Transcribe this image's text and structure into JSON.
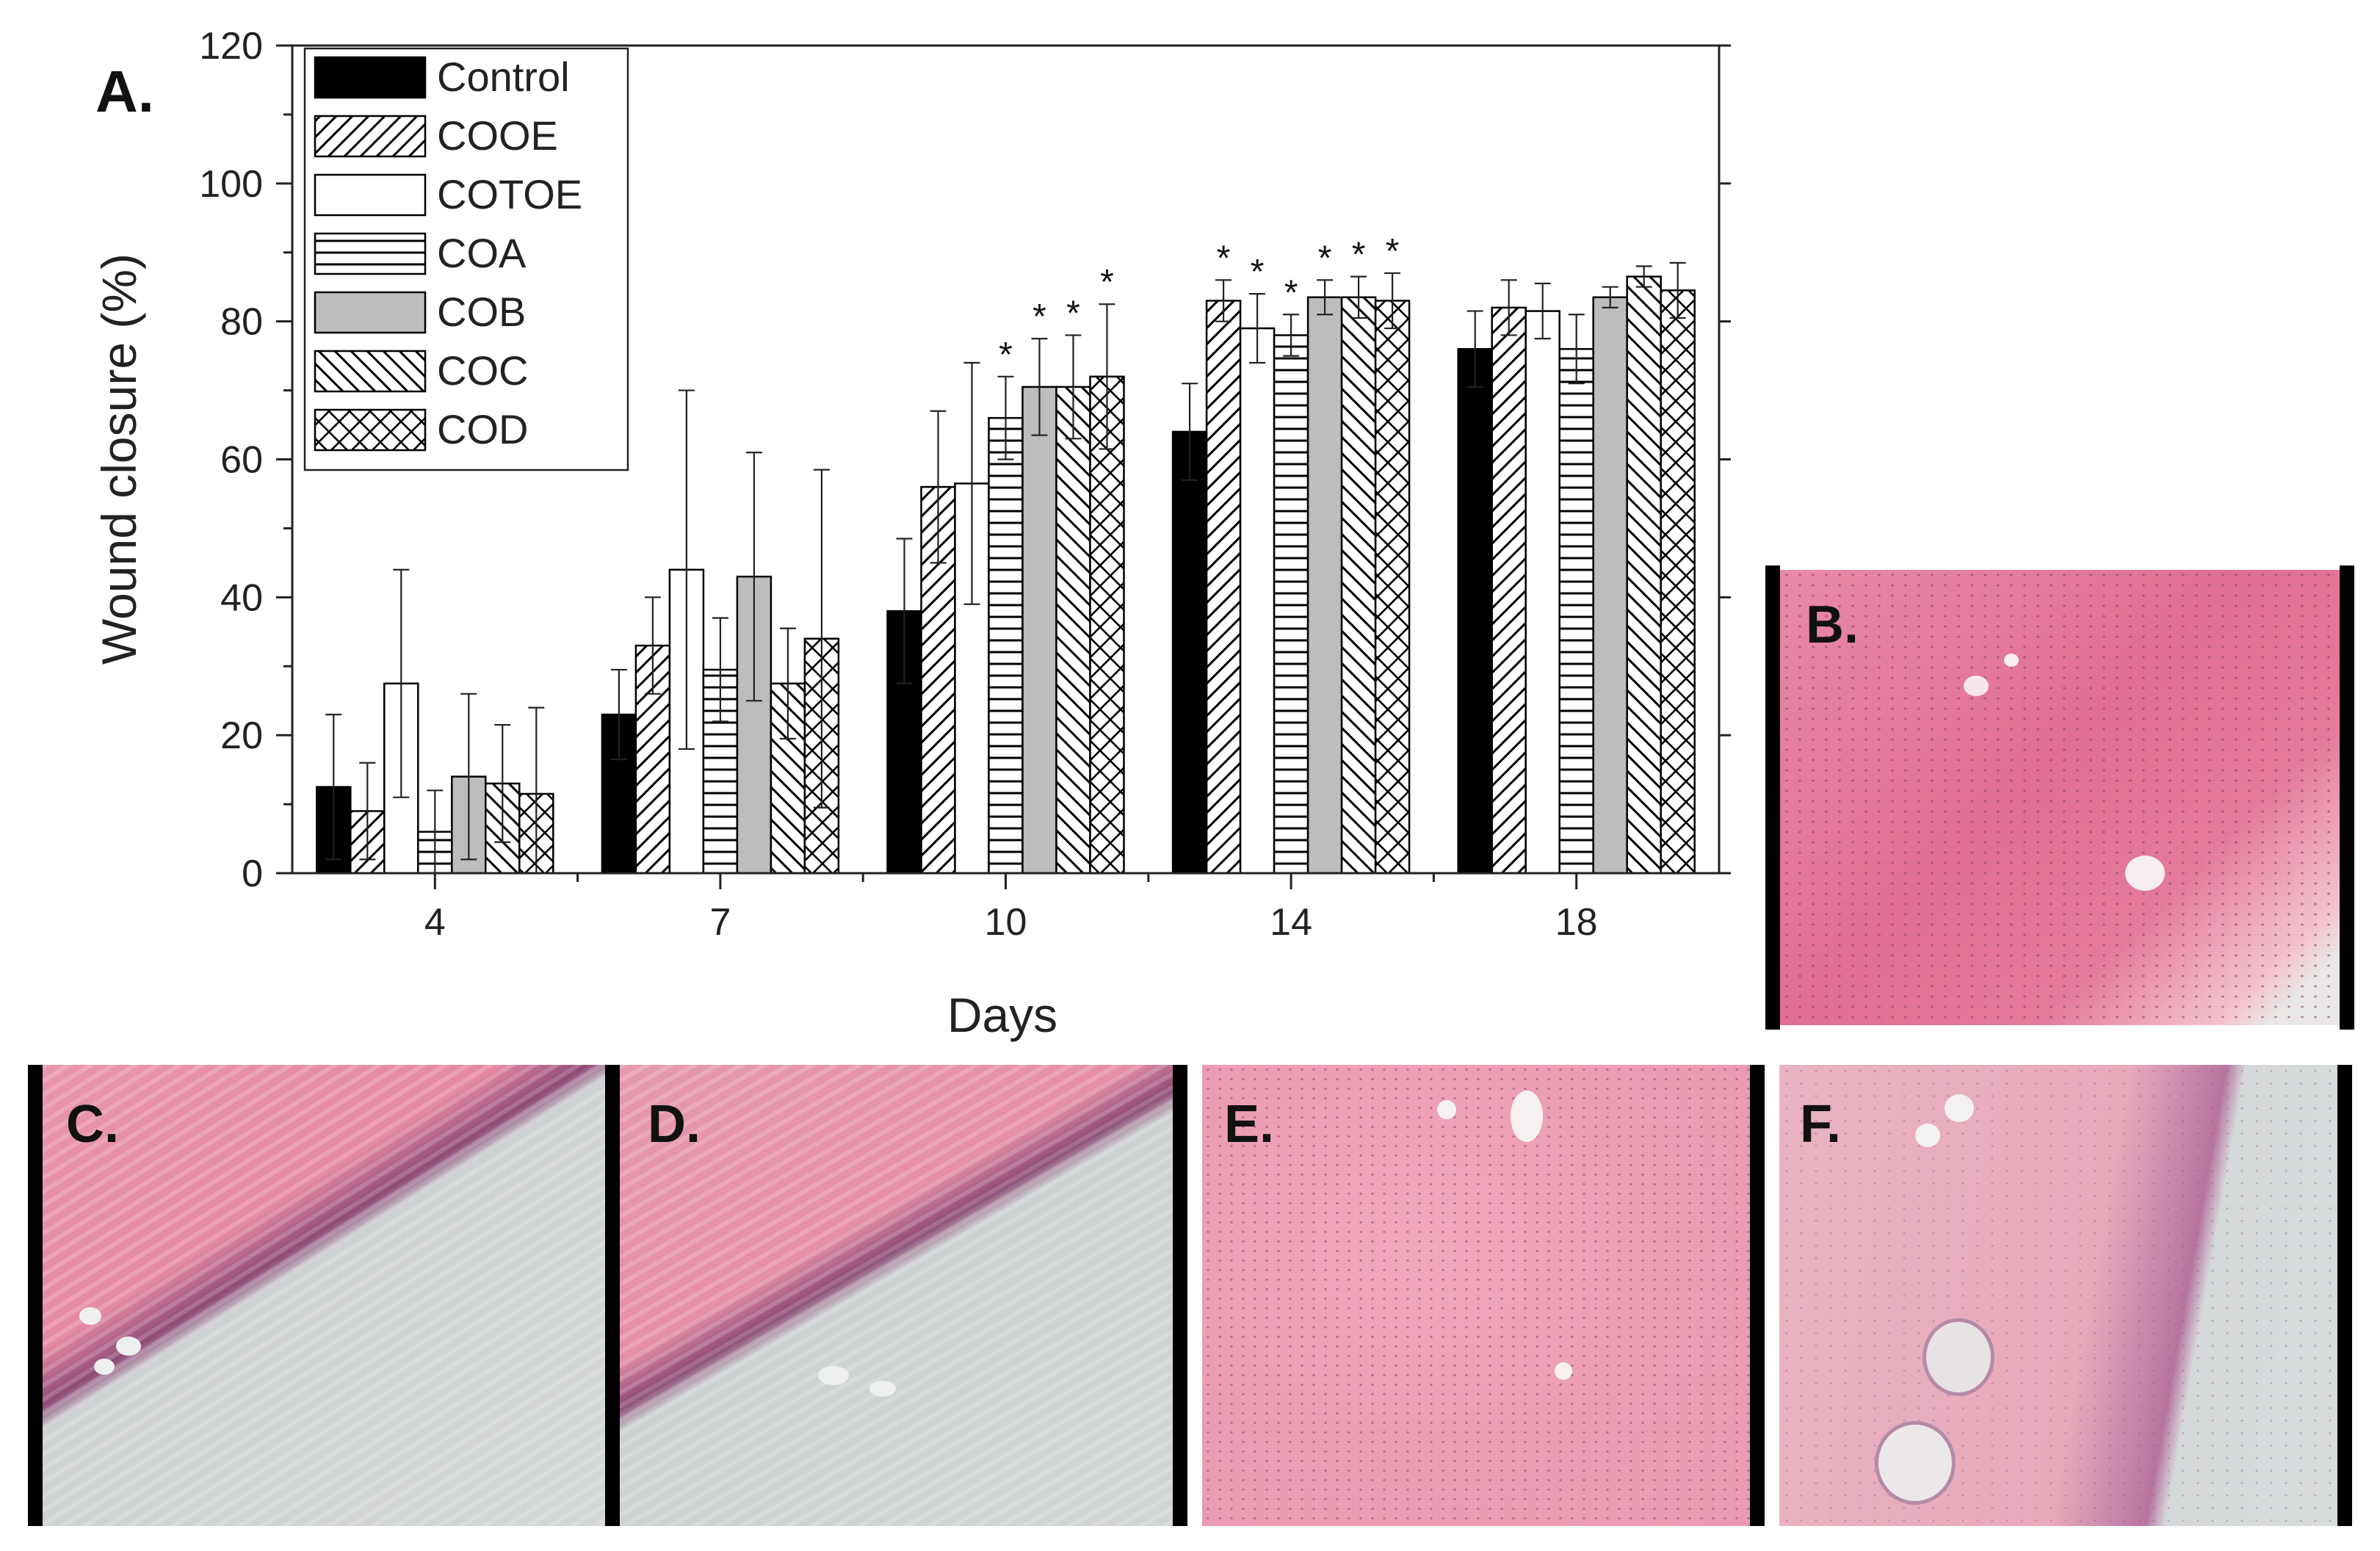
{
  "chart_data": {
    "type": "bar",
    "panel_label": "A.",
    "xlabel": "Days",
    "ylabel": "Wound closure (%)",
    "ylim": [
      0,
      120
    ],
    "yticks": [
      0,
      20,
      40,
      60,
      80,
      100,
      120
    ],
    "categories": [
      "4",
      "7",
      "10",
      "14",
      "18"
    ],
    "legend_position": "top-left",
    "series": [
      {
        "name": "Control",
        "pattern": "solid-black",
        "values": [
          12.5,
          23,
          38,
          64,
          76
        ],
        "errors": [
          10.5,
          6.5,
          10.5,
          7,
          5.5
        ],
        "significant": [
          false,
          false,
          false,
          false,
          false
        ]
      },
      {
        "name": "COOE",
        "pattern": "diag-right",
        "values": [
          9,
          33,
          56,
          83,
          82
        ],
        "errors": [
          7,
          7,
          11,
          3,
          4
        ],
        "significant": [
          false,
          false,
          false,
          true,
          false
        ]
      },
      {
        "name": "COTOE",
        "pattern": "white",
        "values": [
          27.5,
          44,
          56.5,
          79,
          81.5
        ],
        "errors": [
          16.5,
          26,
          17.5,
          5,
          4
        ],
        "significant": [
          false,
          false,
          false,
          true,
          false
        ]
      },
      {
        "name": "COA",
        "pattern": "horizontal",
        "values": [
          6,
          29.5,
          66,
          78,
          76
        ],
        "errors": [
          6,
          7.5,
          6,
          3,
          5
        ],
        "significant": [
          false,
          false,
          true,
          true,
          false
        ]
      },
      {
        "name": "COB",
        "pattern": "solid-gray",
        "values": [
          14,
          43,
          70.5,
          83.5,
          83.5
        ],
        "errors": [
          12,
          18,
          7,
          2.5,
          1.5
        ],
        "significant": [
          false,
          false,
          true,
          true,
          false
        ]
      },
      {
        "name": "COC",
        "pattern": "diag-left",
        "values": [
          13,
          27.5,
          70.5,
          83.5,
          86.5
        ],
        "errors": [
          8.5,
          8,
          7.5,
          3,
          1.5
        ],
        "significant": [
          false,
          false,
          true,
          true,
          false
        ]
      },
      {
        "name": "COD",
        "pattern": "crosshatch",
        "values": [
          11.5,
          34,
          72,
          83,
          84.5
        ],
        "errors": [
          12.5,
          24.5,
          10.5,
          4,
          4
        ],
        "significant": [
          false,
          false,
          true,
          true,
          false
        ]
      }
    ],
    "significance_marker": "*"
  },
  "panels": {
    "b": {
      "label": "B."
    },
    "c": {
      "label": "C."
    },
    "d": {
      "label": "D."
    },
    "e": {
      "label": "E."
    },
    "f": {
      "label": "F."
    }
  },
  "colors": {
    "bar_black": "#000000",
    "bar_gray": "#bdbdbd",
    "tissue_pink": "#e8789a",
    "tissue_pale": "#eaa6b8",
    "slide_background": "#d3d7d7"
  }
}
